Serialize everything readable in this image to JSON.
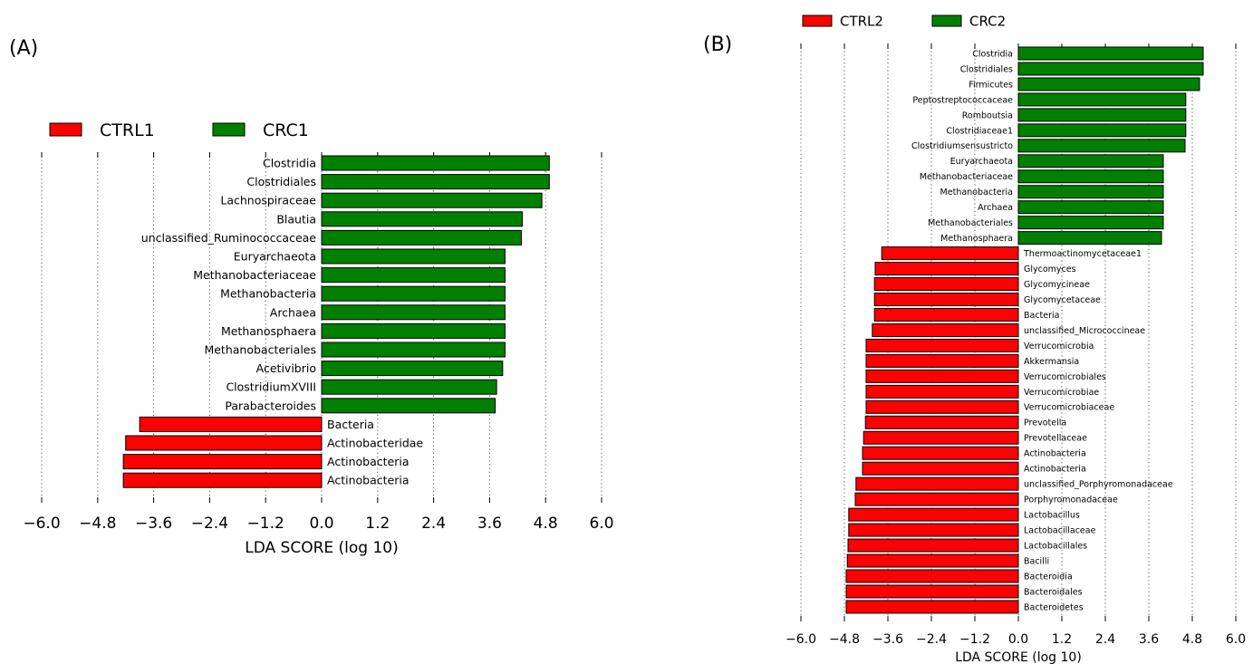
{
  "chart_data": [
    {
      "type": "bar",
      "orientation": "horizontal",
      "panel_label": "(A)",
      "xlabel": "LDA SCORE (log 10)",
      "xlim": [
        -6.0,
        6.0
      ],
      "xticks": [
        -6.0,
        -4.8,
        -3.6,
        -2.4,
        -1.2,
        0.0,
        1.2,
        2.4,
        3.6,
        4.8,
        6.0
      ],
      "tick_labels": [
        "−6.0",
        "−4.8",
        "−3.6",
        "−2.4",
        "−1.2",
        "0.0",
        "1.2",
        "2.4",
        "3.6",
        "4.8",
        "6.0"
      ],
      "grid": "vertical dotted",
      "legend_position": "top-left",
      "legend": [
        {
          "name": "CTRL1",
          "color": "#ff0000"
        },
        {
          "name": "CRC1",
          "color": "#008000"
        }
      ],
      "categories": [
        "Clostridia",
        "Clostridiales",
        "Lachnospiraceae",
        "Blautia",
        "unclassified_Ruminococcaceae",
        "Euryarchaeota",
        "Methanobacteriaceae",
        "Methanobacteria",
        "Archaea",
        "Methanosphaera",
        "Methanobacteriales",
        "Acetivibrio",
        "ClostridiumXVIII",
        "Parabacteroides",
        "Bacteria",
        "Actinobacteridae",
        "Actinobacteria",
        "Actinobacteria"
      ],
      "values": [
        4.88,
        4.88,
        4.72,
        4.3,
        4.28,
        3.93,
        3.93,
        3.93,
        3.93,
        3.93,
        3.93,
        3.88,
        3.75,
        3.72,
        -3.9,
        -4.2,
        -4.25,
        -4.25
      ],
      "groups": [
        "CRC1",
        "CRC1",
        "CRC1",
        "CRC1",
        "CRC1",
        "CRC1",
        "CRC1",
        "CRC1",
        "CRC1",
        "CRC1",
        "CRC1",
        "CRC1",
        "CRC1",
        "CRC1",
        "CTRL1",
        "CTRL1",
        "CTRL1",
        "CTRL1"
      ]
    },
    {
      "type": "bar",
      "orientation": "horizontal",
      "panel_label": "(B)",
      "xlabel": "LDA SCORE (log 10)",
      "xlim": [
        -6.0,
        6.0
      ],
      "xticks": [
        -6.0,
        -4.8,
        -3.6,
        -2.4,
        -1.2,
        0.0,
        1.2,
        2.4,
        3.6,
        4.8,
        6.0
      ],
      "tick_labels": [
        "−6.0",
        "−4.8",
        "−3.6",
        "−2.4",
        "−1.2",
        "0.0",
        "1.2",
        "2.4",
        "3.6",
        "4.8",
        "6.0"
      ],
      "grid": "vertical dotted",
      "legend_position": "top-left",
      "legend": [
        {
          "name": "CTRL2",
          "color": "#ff0000"
        },
        {
          "name": "CRC2",
          "color": "#008000"
        }
      ],
      "categories": [
        "Clostridia",
        "Clostridiales",
        "Firmicutes",
        "Peptostreptococcaceae",
        "Romboutsia",
        "Clostridiaceae1",
        "Clostridiumsensustricto",
        "Euryarchaeota",
        "Methanobacteriaceae",
        "Methanobacteria",
        "Archaea",
        "Methanobacteriales",
        "Methanosphaera",
        "Thermoactinomycetaceae1",
        "Glycomyces",
        "Glycomycineae",
        "Glycomycetaceae",
        "Bacteria",
        "unclassified_Micrococcineae",
        "Verrucomicrobia",
        "Akkermansia",
        "Verrucomicrobiales",
        "Verrucomicrobiae",
        "Verrucomicrobiaceae",
        "Prevotella",
        "Prevotellaceae",
        "Actinobacteria",
        "Actinobacteria",
        "unclassified_Porphyromonadaceae",
        "Porphyromonadaceae",
        "Lactobacillus",
        "Lactobacillaceae",
        "Lactobacillales",
        "Bacilli",
        "Bacteroidia",
        "Bacteroidales",
        "Bacteroidetes"
      ],
      "values": [
        5.1,
        5.1,
        5.0,
        4.62,
        4.62,
        4.62,
        4.6,
        4.0,
        4.0,
        4.0,
        4.0,
        4.0,
        3.95,
        -3.77,
        -3.95,
        -3.97,
        -3.97,
        -3.97,
        -4.03,
        -4.2,
        -4.2,
        -4.2,
        -4.2,
        -4.2,
        -4.22,
        -4.27,
        -4.3,
        -4.3,
        -4.48,
        -4.5,
        -4.68,
        -4.68,
        -4.7,
        -4.72,
        -4.75,
        -4.75,
        -4.75
      ],
      "groups": [
        "CRC2",
        "CRC2",
        "CRC2",
        "CRC2",
        "CRC2",
        "CRC2",
        "CRC2",
        "CRC2",
        "CRC2",
        "CRC2",
        "CRC2",
        "CRC2",
        "CRC2",
        "CTRL2",
        "CTRL2",
        "CTRL2",
        "CTRL2",
        "CTRL2",
        "CTRL2",
        "CTRL2",
        "CTRL2",
        "CTRL2",
        "CTRL2",
        "CTRL2",
        "CTRL2",
        "CTRL2",
        "CTRL2",
        "CTRL2",
        "CTRL2",
        "CTRL2",
        "CTRL2",
        "CTRL2",
        "CTRL2",
        "CTRL2",
        "CTRL2",
        "CTRL2",
        "CTRL2"
      ]
    }
  ]
}
